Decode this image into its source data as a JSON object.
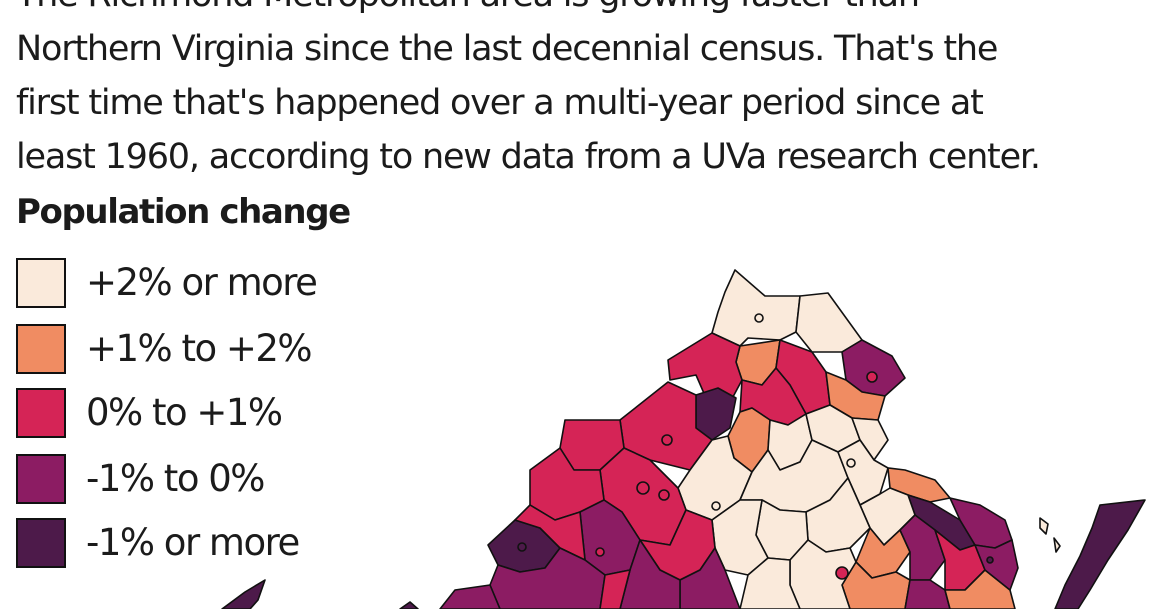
{
  "intro": {
    "lines": [
      "The Richmond Metropolitan area is growing faster than",
      "Northern Virginia since the last decennial census. That's the",
      "first time that's happened over a multi-year period since at",
      "least 1960, according to new data from a UVa research center."
    ]
  },
  "legend": {
    "title": "Population change",
    "items": [
      {
        "label": "+2% or more",
        "color": "#faeadb"
      },
      {
        "label": "+1% to +2%",
        "color": "#f08c62"
      },
      {
        "label": "0% to +1%",
        "color": "#d52456"
      },
      {
        "label": "-1% to 0%",
        "color": "#8c1c63"
      },
      {
        "label": "-1% or more",
        "color": "#4d1a4a"
      }
    ]
  },
  "map": {
    "region": "Virginia counties",
    "outline_color": "#111111"
  }
}
